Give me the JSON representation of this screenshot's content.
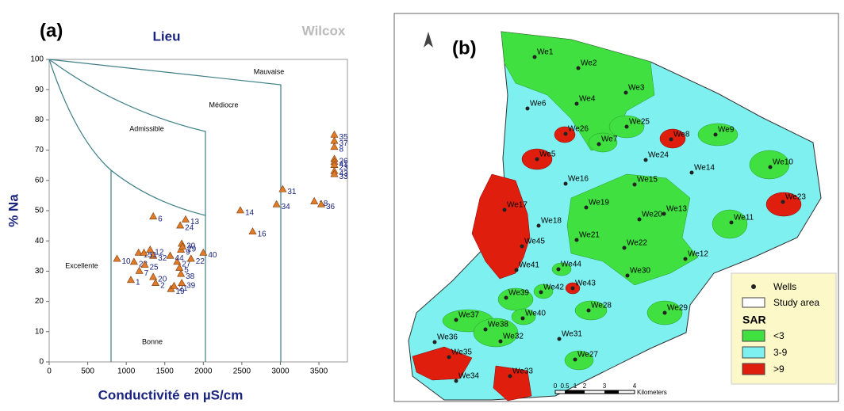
{
  "chart_data": {
    "type": "scatter",
    "panel_label": "(a)",
    "title": "Lieu",
    "subtitle": "Wilcox",
    "x_label": "Conductivité en µS/cm",
    "y_label": "% Na",
    "xlim": [
      0,
      3870
    ],
    "ylim": [
      0,
      100
    ],
    "xticks": [
      0,
      500,
      1000,
      1500,
      2000,
      2500,
      3000,
      3500
    ],
    "yticks": [
      0,
      10,
      20,
      30,
      40,
      50,
      60,
      70,
      80,
      90,
      100
    ],
    "zones": [
      "Excellente",
      "Bonne",
      "Admissible",
      "Médiocre",
      "Mauvaise"
    ],
    "series": [
      {
        "name": "Wells",
        "color": "#e07b2a",
        "labels": [
          "1",
          "2",
          "7",
          "10",
          "15",
          "28",
          "25",
          "20",
          "19",
          "21",
          "39",
          "38",
          "5",
          "27",
          "44",
          "32",
          "12",
          "11",
          "22",
          "30",
          "9",
          "29",
          "40",
          "6",
          "13",
          "24",
          "14",
          "16",
          "34",
          "31",
          "18",
          "36",
          "35",
          "37",
          "8",
          "26",
          "41",
          "23",
          "43",
          "33"
        ],
        "x": [
          1060,
          1380,
          1170,
          880,
          1160,
          1100,
          1240,
          1350,
          1580,
          1620,
          1720,
          1710,
          1690,
          1660,
          1570,
          1350,
          1310,
          1230,
          1840,
          1720,
          1710,
          1730,
          2000,
          1350,
          1770,
          1700,
          2480,
          2640,
          2950,
          3030,
          3440,
          3530,
          3700,
          3700,
          3700,
          3700,
          3700,
          3700,
          3700,
          3700
        ],
        "values": [
          27,
          26,
          30,
          34,
          36,
          33,
          32,
          28,
          24,
          25,
          26,
          29,
          31,
          33,
          35,
          35,
          37,
          36,
          34,
          39,
          37,
          38,
          36,
          48,
          47,
          45,
          50,
          43,
          52,
          57,
          53,
          52,
          75,
          73,
          71,
          67,
          66,
          65,
          63,
          62
        ]
      }
    ]
  },
  "map": {
    "panel_label": "(b)",
    "wells": [
      "We1",
      "We2",
      "We3",
      "We4",
      "We6",
      "We26",
      "We25",
      "We8",
      "We9",
      "We7",
      "We5",
      "We24",
      "We14",
      "We10",
      "We16",
      "We15",
      "We23",
      "We17",
      "We19",
      "We13",
      "We20",
      "We11",
      "We18",
      "We21",
      "We22",
      "We45",
      "We12",
      "We41",
      "We44",
      "We30",
      "We43",
      "We42",
      "We39",
      "We28",
      "We29",
      "We37",
      "We40",
      "We38",
      "We32",
      "We31",
      "We36",
      "We35",
      "We27",
      "We33",
      "We34"
    ],
    "legend": {
      "wells": "Wells",
      "study_area": "Study area",
      "title": "SAR",
      "classes": [
        "<3",
        "3-9",
        ">9"
      ]
    },
    "scale_bar": {
      "ticks": [
        "0",
        "0.5",
        "1",
        "2",
        "3",
        "4"
      ],
      "unit": "Kilometers"
    }
  }
}
